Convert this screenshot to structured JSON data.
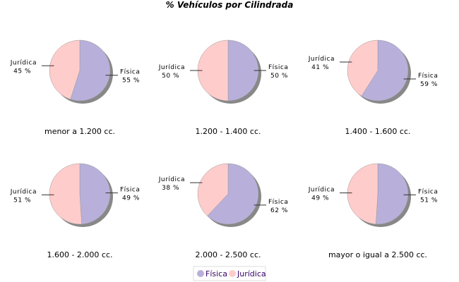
{
  "chart_data": {
    "type": "pie",
    "title": "% Vehículos por Cilindrada",
    "legend": {
      "position": "bottom",
      "entries": [
        "Física",
        "Jurídica"
      ]
    },
    "colors": {
      "Física": "#b8b0da",
      "Jurídica": "#ffcccc"
    },
    "pies": [
      {
        "label": "menor a 1.200 cc.",
        "slices": [
          {
            "name": "Física",
            "value": 55,
            "text": "55 %"
          },
          {
            "name": "Jurídica",
            "value": 45,
            "text": "45 %"
          }
        ]
      },
      {
        "label": "1.200 - 1.400 cc.",
        "slices": [
          {
            "name": "Física",
            "value": 50,
            "text": "50 %"
          },
          {
            "name": "Jurídica",
            "value": 50,
            "text": "50 %"
          }
        ]
      },
      {
        "label": "1.400 - 1.600 cc.",
        "slices": [
          {
            "name": "Física",
            "value": 59,
            "text": "59 %"
          },
          {
            "name": "Jurídica",
            "value": 41,
            "text": "41 %"
          }
        ]
      },
      {
        "label": "1.600 - 2.000 cc.",
        "slices": [
          {
            "name": "Física",
            "value": 49,
            "text": "49 %"
          },
          {
            "name": "Jurídica",
            "value": 51,
            "text": "51 %"
          }
        ]
      },
      {
        "label": "2.000 - 2.500 cc.",
        "slices": [
          {
            "name": "Física",
            "value": 62,
            "text": "62 %"
          },
          {
            "name": "Jurídica",
            "value": 38,
            "text": "38 %"
          }
        ]
      },
      {
        "label": "mayor o igual a 2.500 cc.",
        "slices": [
          {
            "name": "Física",
            "value": 51,
            "text": "51 %"
          },
          {
            "name": "Jurídica",
            "value": 49,
            "text": "49 %"
          }
        ]
      }
    ]
  }
}
